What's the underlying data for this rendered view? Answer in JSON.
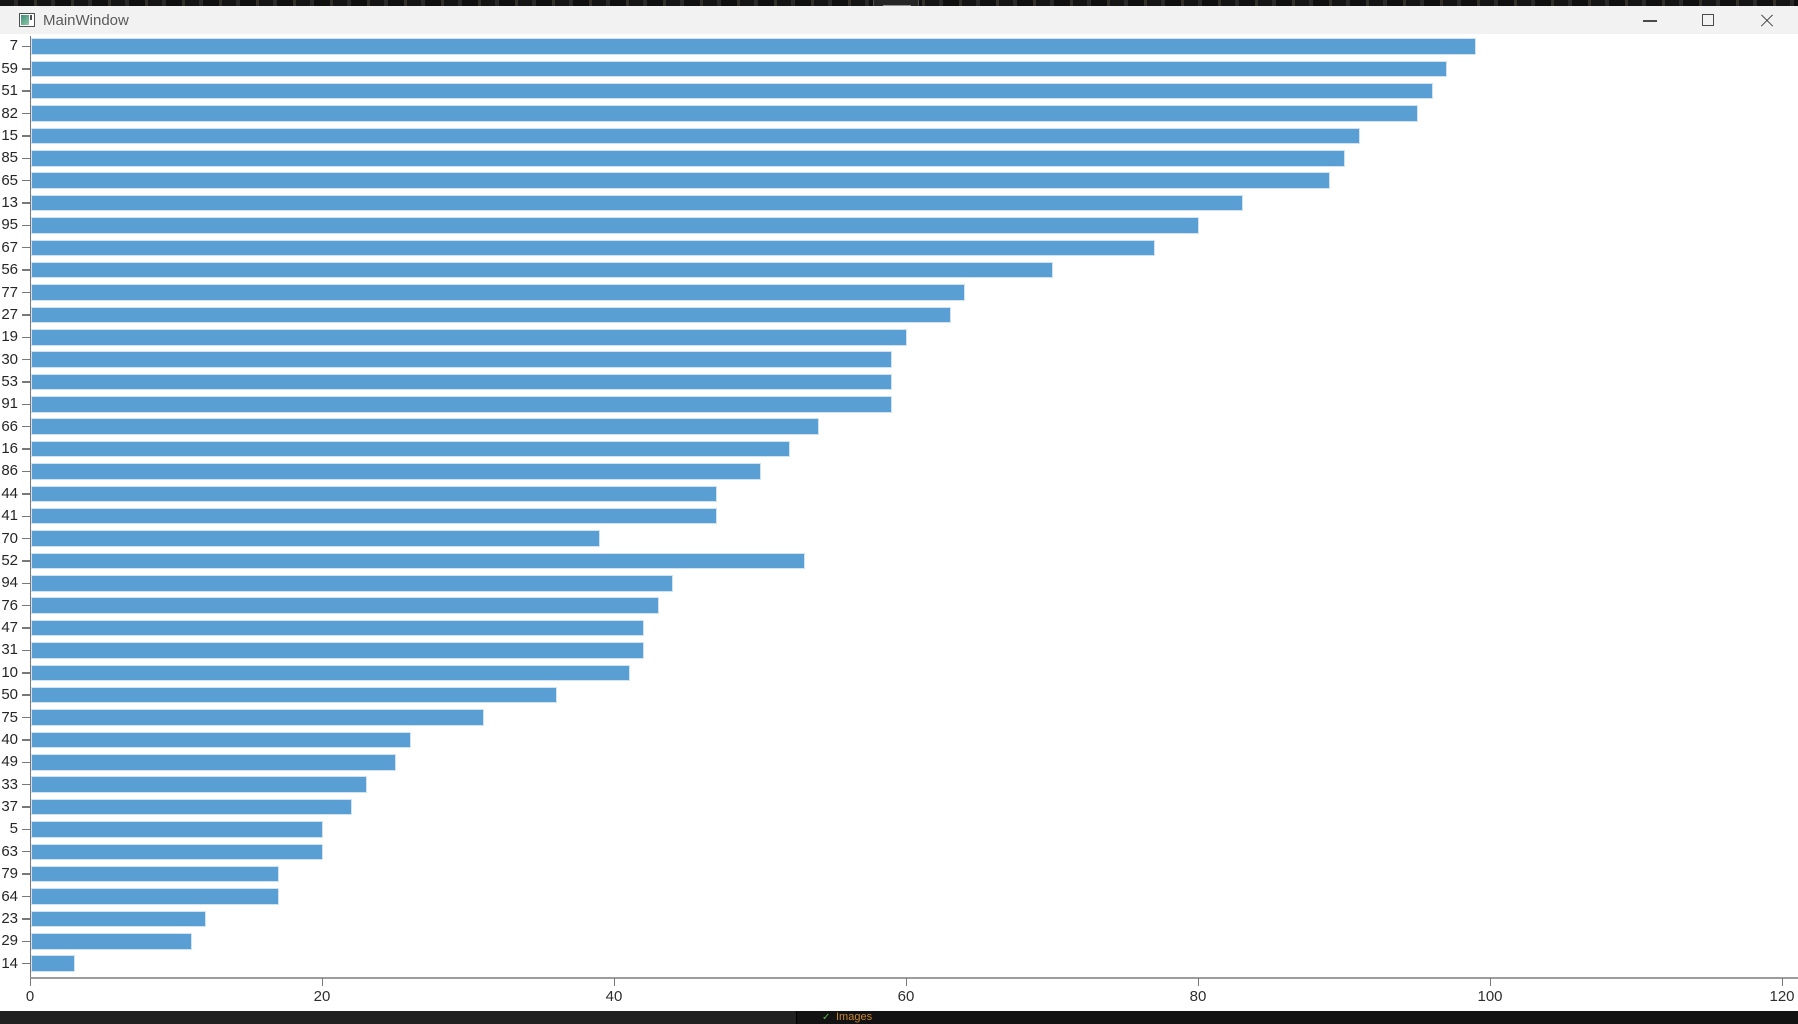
{
  "window": {
    "title": "MainWindow"
  },
  "taskbar": {
    "fragment_text": "Images",
    "check_glyph": "✓"
  },
  "colors": {
    "bar_fill": "#5a9fd4",
    "bar_edge": "#cfe3f3",
    "titlebar_bg": "#f2f2f2",
    "axis_gray": "#787878",
    "top_strip": "#151515",
    "taskbar_bg": "#121212"
  },
  "chart_data": {
    "type": "bar",
    "orientation": "horizontal",
    "title": "",
    "xlabel": "",
    "ylabel": "",
    "grid": false,
    "legend_position": "none",
    "xlim": [
      0,
      120
    ],
    "xticks": [
      0,
      20,
      40,
      60,
      80,
      100,
      120
    ],
    "categories": [
      "7",
      "59",
      "51",
      "82",
      "15",
      "85",
      "65",
      "13",
      "95",
      "67",
      "56",
      "77",
      "27",
      "19",
      "30",
      "53",
      "91",
      "66",
      "16",
      "86",
      "44",
      "41",
      "70",
      "52",
      "94",
      "76",
      "47",
      "31",
      "10",
      "50",
      "75",
      "40",
      "49",
      "33",
      "37",
      "5",
      "63",
      "79",
      "64",
      "23",
      "29",
      "14"
    ],
    "values": [
      99,
      97,
      96,
      95,
      91,
      90,
      89,
      83,
      80,
      77,
      70,
      64,
      63,
      60,
      59,
      59,
      59,
      54,
      52,
      50,
      47,
      47,
      39,
      53,
      44,
      43,
      42,
      42,
      41,
      36,
      31,
      26,
      25,
      23,
      22,
      20,
      20,
      17,
      17,
      12,
      11,
      3
    ]
  }
}
